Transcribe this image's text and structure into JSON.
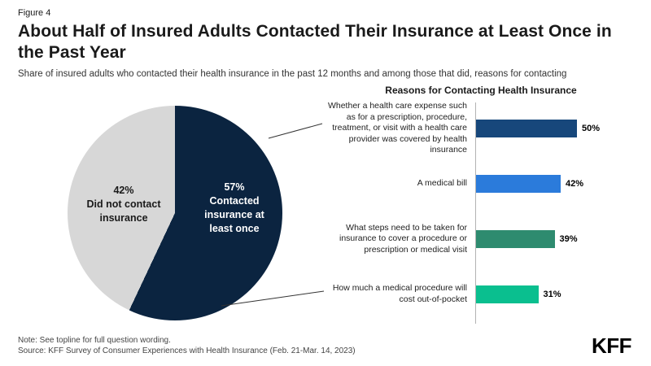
{
  "figure_label": "Figure 4",
  "title": "About Half of Insured Adults Contacted Their Insurance at Least Once in the Past Year",
  "subtitle": "Share of insured adults who contacted their health insurance in the past 12 months and among those that did, reasons for contacting",
  "logo": {
    "text": "KFF"
  },
  "notes": [
    "Note: See topline for full question wording.",
    "Source: KFF Survey of Consumer Experiences with Health Insurance (Feb. 21-Mar. 14, 2023)"
  ],
  "chart_data": [
    {
      "type": "pie",
      "slices": [
        {
          "label": "Contacted insurance at least once",
          "pct_label": "57%",
          "value": 57,
          "color": "#0b2440",
          "text_color": "#ffffff"
        },
        {
          "label": "Did not contact insurance",
          "pct_label": "42%",
          "value": 42,
          "color": "#d7d7d7",
          "text_color": "#1a1a1a"
        }
      ]
    },
    {
      "type": "bar",
      "orientation": "horizontal",
      "title": "Reasons for Contacting Health Insurance",
      "categories": [
        "Whether a health care expense such as for a prescription, procedure, treatment, or visit with a health care provider was covered by health insurance",
        "A medical bill",
        "What steps need to be taken for insurance to cover a procedure or prescription or medical visit",
        "How much a medical procedure will cost out-of-pocket"
      ],
      "values": [
        50,
        42,
        39,
        31
      ],
      "value_labels": [
        "50%",
        "42%",
        "39%",
        "31%"
      ],
      "colors": [
        "#17477b",
        "#2b7bdb",
        "#2e8b6f",
        "#0abf8f"
      ],
      "xlim": [
        0,
        60
      ],
      "grid": false,
      "legend": false
    }
  ]
}
